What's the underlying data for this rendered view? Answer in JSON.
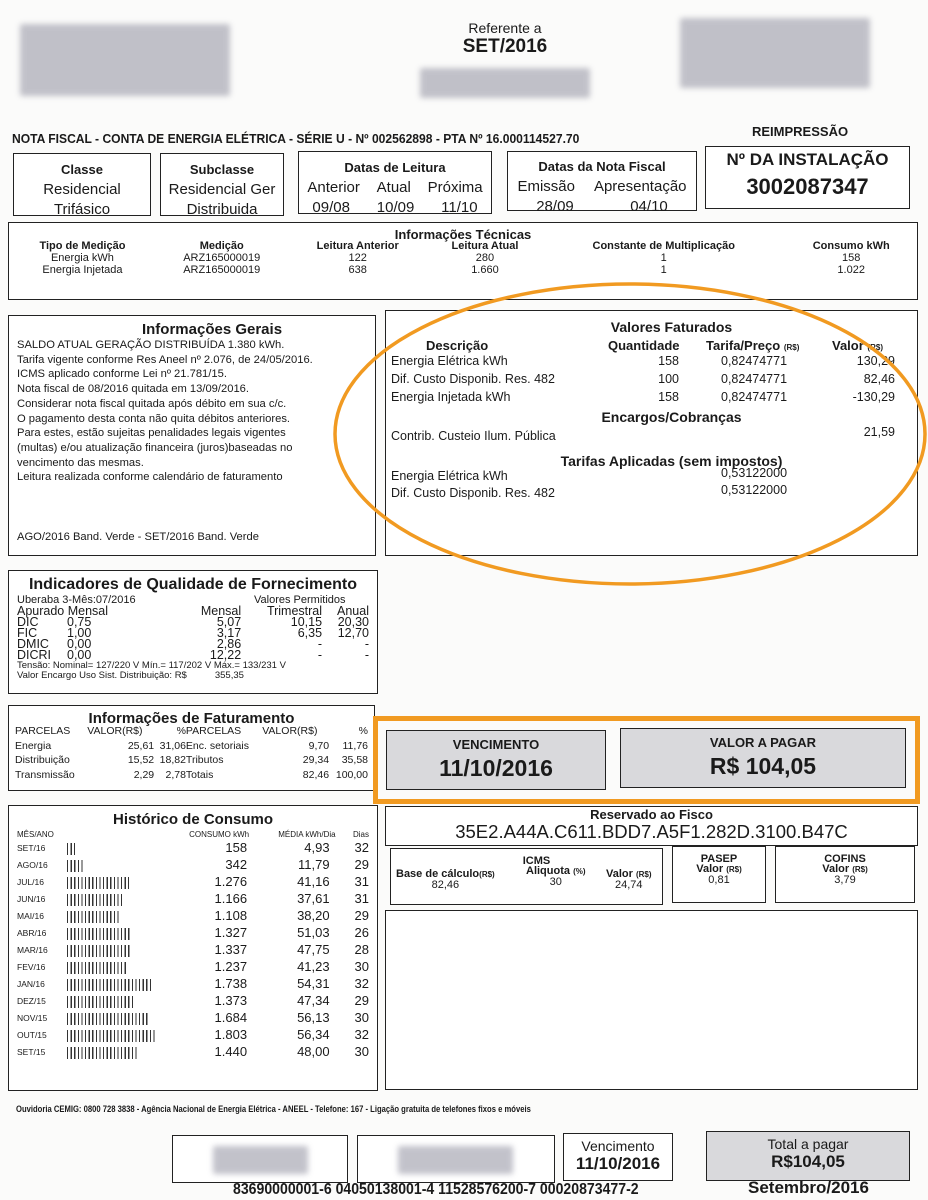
{
  "header": {
    "referente_label": "Referente a",
    "referente_value": "SET/2016"
  },
  "title_line": "NOTA FISCAL - CONTA DE ENERGIA ELÉTRICA - SÉRIE U - Nº 002562898 - PTA Nº 16.000114527.70",
  "reimpressao": "REIMPRESSÃO",
  "classe": {
    "label": "Classe",
    "l1": "Residencial",
    "l2": "Trifásico"
  },
  "subclasse": {
    "label": "Subclasse",
    "l1": "Residencial Ger",
    "l2": "Distribuida"
  },
  "datas_leitura": {
    "label": "Datas de Leitura",
    "cols": [
      "Anterior",
      "Atual",
      "Próxima"
    ],
    "vals": [
      "09/08",
      "10/09",
      "11/10"
    ]
  },
  "datas_nf": {
    "label": "Datas da Nota Fiscal",
    "cols": [
      "Emissão",
      "Apresentação"
    ],
    "vals": [
      "28/09",
      "04/10"
    ]
  },
  "instalacao": {
    "label": "Nº DA INSTALAÇÃO",
    "value": "3002087347"
  },
  "tecnicas": {
    "title": "Informações Técnicas",
    "headers": [
      "Tipo de Medição",
      "Medição",
      "Leitura Anterior",
      "Leitura Atual",
      "Constante de Multiplicação",
      "Consumo kWh"
    ],
    "rows": [
      [
        "Energia kWh",
        "ARZ165000019",
        "122",
        "280",
        "1",
        "158"
      ],
      [
        "Energia Injetada",
        "ARZ165000019",
        "638",
        "1.660",
        "1",
        "1.022"
      ]
    ]
  },
  "gerais": {
    "title": "Informações Gerais",
    "lines": [
      "SALDO ATUAL GERAÇÃO DISTRIBUÍDA 1.380 kWh.",
      "Tarifa vigente conforme Res Aneel nº 2.076, de 24/05/2016.",
      "ICMS aplicado conforme Lei nº 21.781/15.",
      "Nota fiscal de 08/2016 quitada em 13/09/2016.",
      "Considerar nota fiscal quitada após débito em sua c/c.",
      "O pagamento desta conta não quita débitos anteriores.",
      "Para estes, estão sujeitas penalidades legais vigentes",
      "(multas) e/ou atualização financeira (juros)baseadas no",
      "vencimento das mesmas.",
      "Leitura realizada conforme calendário de faturamento"
    ],
    "bandeira": "AGO/2016 Band. Verde - SET/2016 Band. Verde"
  },
  "valores": {
    "title": "Valores Faturados",
    "h_desc": "Descrição",
    "h_qtd": "Quantidade",
    "h_tarifa": "Tarifa/Preço",
    "h_tarifa_unit": "(R$)",
    "h_valor": "Valor",
    "h_valor_unit": "(R$)",
    "rows": [
      [
        "Energia Elétrica kWh",
        "158",
        "0,82474771",
        "130,29"
      ],
      [
        "Dif. Custo Disponib. Res. 482",
        "100",
        "0,82474771",
        "82,46"
      ],
      [
        "Energia Injetada kWh",
        "158",
        "0,82474771",
        "-130,29"
      ]
    ],
    "encargos_title": "Encargos/Cobranças",
    "encargos": [
      [
        "Contrib. Custeio Ilum. Pública",
        "21,59"
      ]
    ],
    "tarifas_title": "Tarifas Aplicadas (sem impostos)",
    "tarifas": [
      [
        "Energia Elétrica kWh",
        "0,53122000"
      ],
      [
        "Dif. Custo Disponib. Res. 482",
        "0,53122000"
      ]
    ]
  },
  "qualidade": {
    "title": "Indicadores de Qualidade de Fornecimento",
    "local": "Uberaba 3-Mês:07/2016",
    "permitidos": "Valores Permitidos",
    "apurado": "Apurado Mensal",
    "cols": [
      "Mensal",
      "Trimestral",
      "Anual"
    ],
    "rows": [
      [
        "DIC",
        "0,75",
        "5,07",
        "10,15",
        "20,30"
      ],
      [
        "FIC",
        "1,00",
        "3,17",
        "6,35",
        "12,70"
      ],
      [
        "DMIC",
        "0,00",
        "2,86",
        "-",
        "-"
      ],
      [
        "DICRI",
        "0,00",
        "12,22",
        "-",
        "-"
      ]
    ],
    "tensao": "Tensão: Nominal= 127/220 V Mín.= 117/202 V Máx.= 133/231 V",
    "encargo_label": "Valor Encargo Uso Sist. Distribuição: R$",
    "encargo_value": "355,35"
  },
  "faturamento": {
    "title": "Informações de Faturamento",
    "headers": [
      "PARCELAS",
      "VALOR(R$)",
      "%",
      "PARCELAS",
      "VALOR(R$)",
      "%"
    ],
    "rows": [
      [
        "Energia",
        "25,61",
        "31,06",
        "Enc. setoriais",
        "9,70",
        "11,76"
      ],
      [
        "Distribuição",
        "15,52",
        "18,82",
        "Tributos",
        "29,34",
        "35,58"
      ],
      [
        "Transmissão",
        "2,29",
        "2,78",
        "Totais",
        "82,46",
        "100,00"
      ]
    ]
  },
  "pagamento": {
    "venc_label": "VENCIMENTO",
    "venc_value": "11/10/2016",
    "valor_label": "VALOR A PAGAR",
    "valor_value": "R$ 104,05",
    "highlight_color": "#f19a21"
  },
  "fisco": {
    "label": "Reservado ao Fisco",
    "code": "35E2.A44A.C611.BDD7.A5F1.282D.3100.B47C"
  },
  "icms": {
    "title": "ICMS",
    "base_label": "Base de cálculo",
    "base_unit": "(R$)",
    "base": "82,46",
    "aliq_label": "Aliquota",
    "aliq_unit": "(%)",
    "aliq": "30",
    "valor_label": "Valor",
    "valor_unit": "(R$)",
    "valor": "24,74"
  },
  "pasep": {
    "title": "PASEP",
    "valor_label": "Valor",
    "valor_unit": "(R$)",
    "valor": "0,81"
  },
  "cofins": {
    "title": "COFINS",
    "valor_label": "Valor",
    "valor_unit": "(R$)",
    "valor": "3,79"
  },
  "historico": {
    "title": "Histórico de Consumo",
    "headers": [
      "MÊS/ANO",
      "CONSUMO kWh",
      "MÉDIA kWh/Dia",
      "Dias"
    ],
    "rows": [
      [
        "SET/16",
        "158",
        "4,93",
        "32"
      ],
      [
        "AGO/16",
        "342",
        "11,79",
        "29"
      ],
      [
        "JUL/16",
        "1.276",
        "41,16",
        "31"
      ],
      [
        "JUN/16",
        "1.166",
        "37,61",
        "31"
      ],
      [
        "MAI/16",
        "1.108",
        "38,20",
        "29"
      ],
      [
        "ABR/16",
        "1.327",
        "51,03",
        "26"
      ],
      [
        "MAR/16",
        "1.337",
        "47,75",
        "28"
      ],
      [
        "FEV/16",
        "1.237",
        "41,23",
        "30"
      ],
      [
        "JAN/16",
        "1.738",
        "54,31",
        "32"
      ],
      [
        "DEZ/15",
        "1.373",
        "47,34",
        "29"
      ],
      [
        "NOV/15",
        "1.684",
        "56,13",
        "30"
      ],
      [
        "OUT/15",
        "1.803",
        "56,34",
        "32"
      ],
      [
        "SET/15",
        "1.440",
        "48,00",
        "30"
      ]
    ]
  },
  "ouvidoria": "Ouvidoria CEMIG: 0800 728 3838 - Agência Nacional de Energia Elétrica - ANEEL - Telefone: 167 - Ligação gratuita de telefones fixos e móveis",
  "canhoto": {
    "venc_label": "Vencimento",
    "venc_value": "11/10/2016",
    "total_label": "Total a pagar",
    "total_value": "R$104,05",
    "barcode_line": "83690000001-6 04050138001-4 11528576200-7 00020873477-2",
    "mes": "Setembro/2016"
  }
}
